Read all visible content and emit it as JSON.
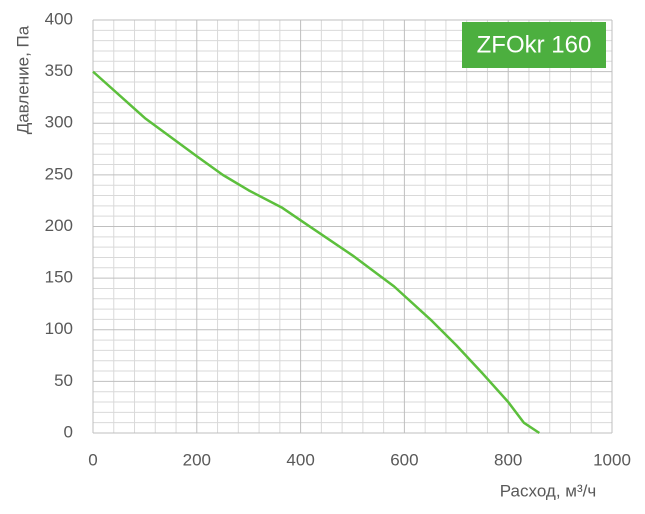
{
  "chart_data": {
    "type": "line",
    "title": "ZFOkr 160",
    "xlabel": "Расход, м³/ч",
    "ylabel": "Давление, Па",
    "x": [
      0,
      100,
      200,
      250,
      300,
      365,
      400,
      500,
      580,
      650,
      700,
      750,
      800,
      830,
      860
    ],
    "series": [
      {
        "name": "ZFOkr 160",
        "color": "#5cbf3c",
        "values": [
          350,
          305,
          268,
          250,
          235,
          218,
          206,
          172,
          142,
          110,
          85,
          58,
          30,
          10,
          0
        ]
      }
    ],
    "xlim": [
      0,
      1000
    ],
    "ylim": [
      0,
      400
    ],
    "xticks": [
      0,
      200,
      400,
      600,
      800,
      1000
    ],
    "yticks": [
      0,
      50,
      100,
      150,
      200,
      250,
      300,
      350,
      400
    ],
    "xminorticks": [
      40,
      80,
      120,
      160,
      240,
      280,
      320,
      360,
      440,
      480,
      520,
      560,
      640,
      680,
      720,
      760,
      840,
      880,
      920,
      960
    ],
    "yminorticks": [
      10,
      20,
      30,
      40,
      60,
      70,
      80,
      90,
      110,
      120,
      130,
      140,
      160,
      170,
      180,
      190,
      210,
      220,
      230,
      240,
      260,
      270,
      280,
      290,
      310,
      320,
      330,
      340,
      360,
      370,
      380,
      390
    ],
    "grid": true,
    "title_color": "#4caf3f"
  }
}
